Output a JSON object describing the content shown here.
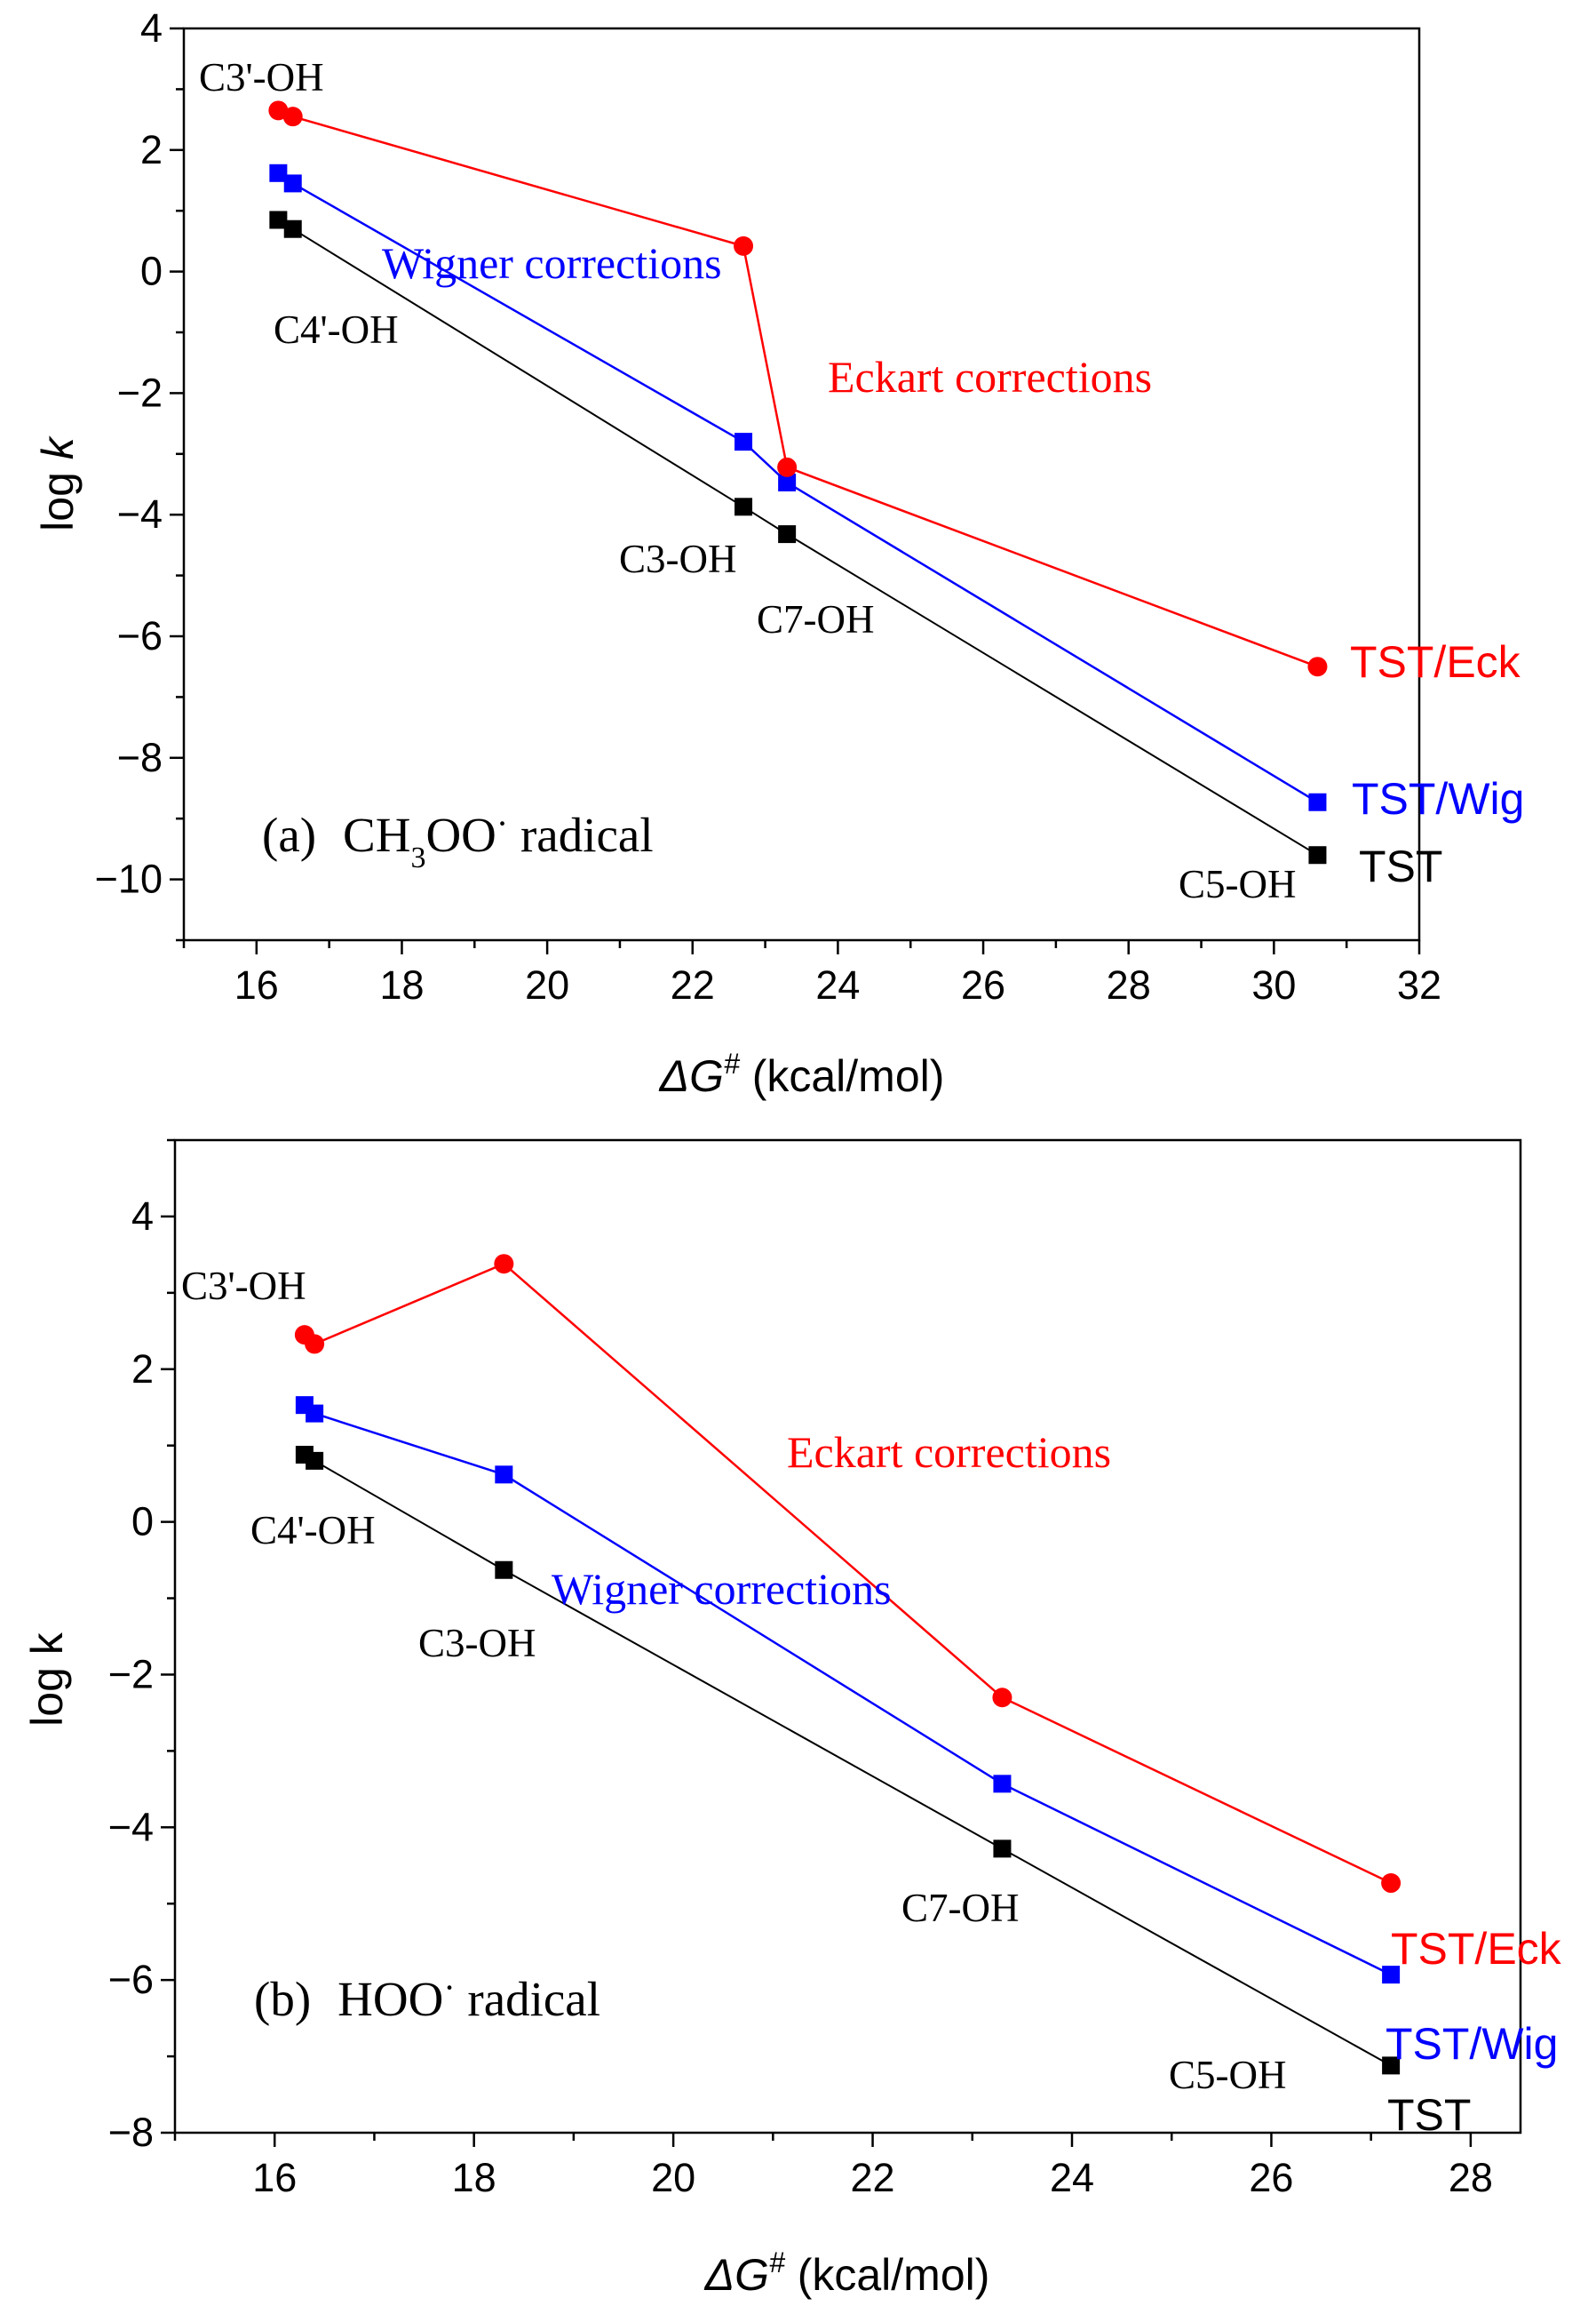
{
  "chart_data": [
    {
      "type": "line",
      "panel_label": "(a)",
      "panel_title_main": "CH",
      "panel_title_sub": "3",
      "panel_title_rest": "OO",
      "panel_title_sup": "·",
      "panel_title_end": " radical",
      "xlabel_prefix": "ΔG",
      "xlabel_sup": "#",
      "xlabel_rest": " (kcal/mol)",
      "ylabel_main": "log ",
      "ylabel_italic": "k",
      "xlim": [
        15,
        32
      ],
      "ylim": [
        -11,
        4
      ],
      "xticks": [
        16,
        18,
        20,
        22,
        24,
        26,
        28,
        30,
        32
      ],
      "yticks": [
        4,
        2,
        0,
        -2,
        -4,
        -6,
        -8,
        -10
      ],
      "ytick_labels": [
        "4",
        "2",
        "0",
        "−2",
        "−4",
        "−6",
        "−8",
        "−10"
      ],
      "series": [
        {
          "name": "TST/Eck",
          "color": "#ff0000",
          "marker": "circle",
          "x": [
            16.3,
            16.5,
            22.7,
            23.3,
            30.6
          ],
          "y": [
            2.65,
            2.55,
            0.42,
            -3.22,
            -6.5
          ]
        },
        {
          "name": "TST/Wig",
          "color": "#0000ff",
          "marker": "square",
          "x": [
            16.3,
            16.5,
            22.7,
            23.3,
            30.6
          ],
          "y": [
            1.62,
            1.45,
            -2.8,
            -3.47,
            -8.73
          ]
        },
        {
          "name": "TST",
          "color": "#000000",
          "marker": "square",
          "x": [
            16.3,
            16.5,
            22.7,
            23.3,
            30.6
          ],
          "y": [
            0.85,
            0.7,
            -3.87,
            -4.32,
            -9.6
          ]
        }
      ],
      "point_labels": [
        "C3'-OH",
        "C4'-OH",
        "C3-OH",
        "C7-OH",
        "C5-OH"
      ],
      "correction_labels": [
        "Wigner corrections",
        "Eckart corrections"
      ]
    },
    {
      "type": "line",
      "panel_label": "(b)",
      "panel_title_main": "HOO",
      "panel_title_sup": "·",
      "panel_title_end": " radical",
      "xlabel_prefix": "ΔG",
      "xlabel_sup": "#",
      "xlabel_rest": " (kcal/mol)",
      "ylabel": "log k",
      "xlim": [
        15,
        28.5
      ],
      "ylim": [
        -8,
        5
      ],
      "xticks": [
        16,
        18,
        20,
        22,
        24,
        26,
        28
      ],
      "yticks": [
        4,
        2,
        0,
        -2,
        -4,
        -6,
        -8
      ],
      "ytick_labels": [
        "4",
        "2",
        "0",
        "−2",
        "−4",
        "−6",
        "−8"
      ],
      "series": [
        {
          "name": "TST/Eck",
          "color": "#ff0000",
          "marker": "circle",
          "x": [
            16.3,
            16.4,
            18.3,
            23.3,
            27.2
          ],
          "y": [
            2.45,
            2.33,
            3.38,
            -2.3,
            -4.73
          ]
        },
        {
          "name": "TST/Wig",
          "color": "#0000ff",
          "marker": "square",
          "x": [
            16.3,
            16.4,
            18.3,
            23.3,
            27.2
          ],
          "y": [
            1.53,
            1.42,
            0.62,
            -3.43,
            -5.93
          ]
        },
        {
          "name": "TST",
          "color": "#000000",
          "marker": "square",
          "x": [
            16.3,
            16.4,
            18.3,
            23.3,
            27.2
          ],
          "y": [
            0.88,
            0.8,
            -0.63,
            -4.28,
            -7.12
          ]
        }
      ],
      "point_labels": [
        "C3'-OH",
        "C4'-OH",
        "C3-OH",
        "C7-OH",
        "C5-OH"
      ],
      "correction_labels": [
        "Eckart corrections",
        "Wigner corrections"
      ]
    }
  ]
}
